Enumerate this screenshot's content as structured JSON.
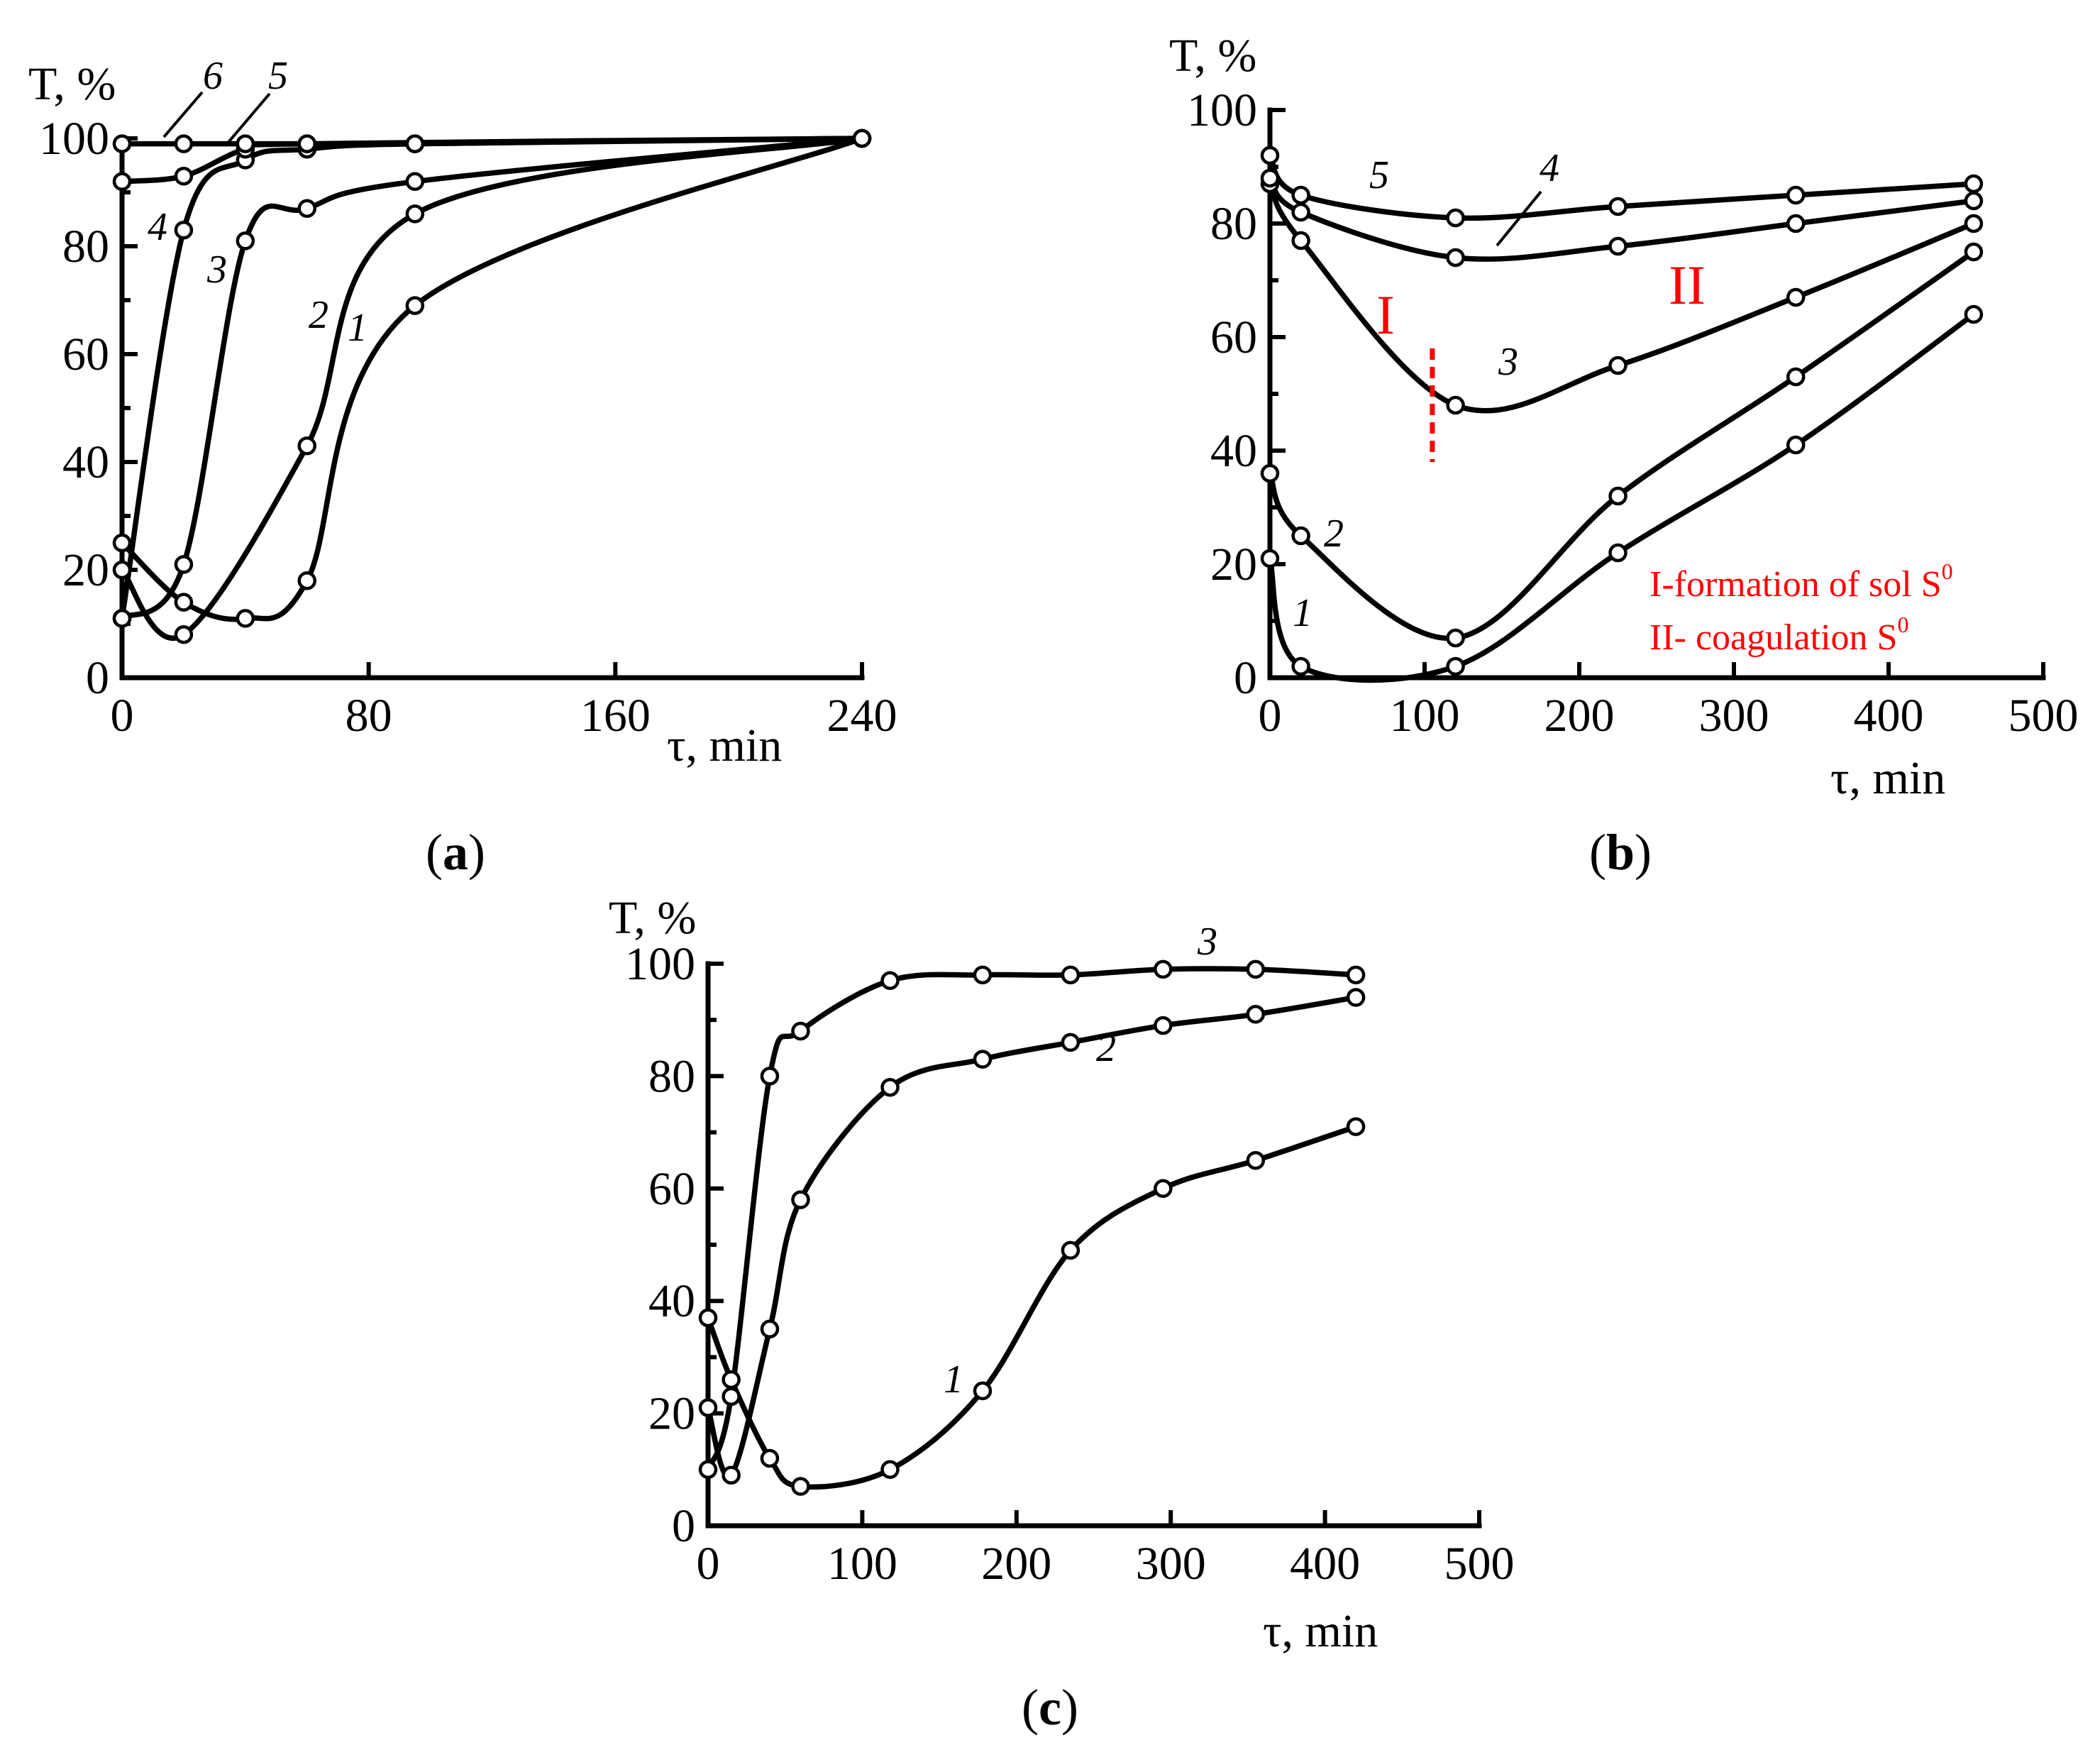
{
  "chart_data": [
    {
      "id": "a",
      "type": "line",
      "panel_label": "a",
      "ylabel": "T, %",
      "xlabel": "τ, min",
      "xlim": [
        0,
        240
      ],
      "ylim": [
        0,
        100
      ],
      "xticks": [
        "0",
        "80",
        "160",
        "240"
      ],
      "xtick_values": [
        0,
        80,
        160,
        240
      ],
      "yticks": [
        "0",
        "20",
        "40",
        "60",
        "80",
        "100"
      ],
      "ytick_values": [
        0,
        20,
        40,
        60,
        80,
        100
      ],
      "series": [
        {
          "name": "1",
          "x": [
            0,
            20,
            40,
            60,
            95,
            240
          ],
          "y": [
            25,
            14,
            11,
            18,
            69,
            100
          ]
        },
        {
          "name": "2",
          "x": [
            0,
            20,
            60,
            95,
            240
          ],
          "y": [
            20,
            8,
            43,
            86,
            100
          ]
        },
        {
          "name": "3",
          "x": [
            0,
            20,
            40,
            60,
            95,
            240
          ],
          "y": [
            11,
            21,
            81,
            87,
            92,
            100
          ]
        },
        {
          "name": "4",
          "x": [
            0,
            20,
            40,
            60,
            95,
            240
          ],
          "y": [
            11,
            83,
            96,
            98,
            99,
            100
          ]
        },
        {
          "name": "5",
          "x": [
            0,
            20,
            40,
            60,
            240
          ],
          "y": [
            92,
            93,
            98,
            99,
            100
          ]
        },
        {
          "name": "6",
          "x": [
            0,
            20,
            40,
            60,
            95,
            240
          ],
          "y": [
            99,
            99,
            99,
            99,
            99,
            100
          ]
        }
      ]
    },
    {
      "id": "b",
      "type": "line",
      "panel_label": "b",
      "ylabel": "T, %",
      "xlabel": "τ, min",
      "xlim": [
        0,
        500
      ],
      "ylim": [
        0,
        100
      ],
      "xticks": [
        "0",
        "100",
        "200",
        "300",
        "400",
        "500"
      ],
      "xtick_values": [
        0,
        100,
        200,
        300,
        400,
        500
      ],
      "yticks": [
        "0",
        "20",
        "40",
        "60",
        "80",
        "100"
      ],
      "ytick_values": [
        0,
        20,
        40,
        60,
        80,
        100
      ],
      "series": [
        {
          "name": "1",
          "x": [
            0,
            20,
            120,
            225,
            340,
            455
          ],
          "y": [
            21,
            2,
            2,
            22,
            41,
            64
          ]
        },
        {
          "name": "2",
          "x": [
            0,
            20,
            120,
            225,
            340,
            455
          ],
          "y": [
            36,
            25,
            7,
            32,
            53,
            75
          ]
        },
        {
          "name": "3",
          "x": [
            0,
            20,
            120,
            225,
            340,
            455
          ],
          "y": [
            87,
            77,
            48,
            55,
            67,
            80
          ]
        },
        {
          "name": "4",
          "x": [
            0,
            20,
            120,
            225,
            340,
            455
          ],
          "y": [
            88,
            82,
            74,
            76,
            80,
            84
          ]
        },
        {
          "name": "5",
          "x": [
            0,
            20,
            120,
            225,
            340,
            455
          ],
          "y": [
            92,
            85,
            81,
            83,
            85,
            87
          ]
        }
      ],
      "region_labels": [
        "I",
        "II"
      ],
      "region_boundary_x": 105,
      "legend_lines": [
        "I-formation of sol S",
        "II- coagulation S"
      ],
      "superscript": "0"
    },
    {
      "id": "c",
      "type": "line",
      "panel_label": "c",
      "ylabel": "T, %",
      "xlabel": "τ, min",
      "xlim": [
        0,
        500
      ],
      "ylim": [
        0,
        100
      ],
      "xticks": [
        "0",
        "100",
        "200",
        "300",
        "400",
        "500"
      ],
      "xtick_values": [
        0,
        100,
        200,
        300,
        400,
        500
      ],
      "yticks": [
        "0",
        "20",
        "40",
        "60",
        "80",
        "100"
      ],
      "ytick_values": [
        0,
        20,
        40,
        60,
        80,
        100
      ],
      "series": [
        {
          "name": "1",
          "x": [
            0,
            15,
            40,
            60,
            118,
            178,
            235,
            295,
            355,
            420
          ],
          "y": [
            37,
            26,
            12,
            7,
            10,
            24,
            49,
            60,
            65,
            71
          ]
        },
        {
          "name": "2",
          "x": [
            0,
            15,
            40,
            60,
            118,
            178,
            235,
            295,
            355,
            420
          ],
          "y": [
            21,
            9,
            35,
            58,
            78,
            83,
            86,
            89,
            91,
            94
          ]
        },
        {
          "name": "3",
          "x": [
            0,
            15,
            40,
            60,
            118,
            178,
            235,
            295,
            355,
            420
          ],
          "y": [
            10,
            23,
            80,
            88,
            97,
            98,
            98,
            99,
            99,
            98
          ]
        }
      ]
    }
  ]
}
